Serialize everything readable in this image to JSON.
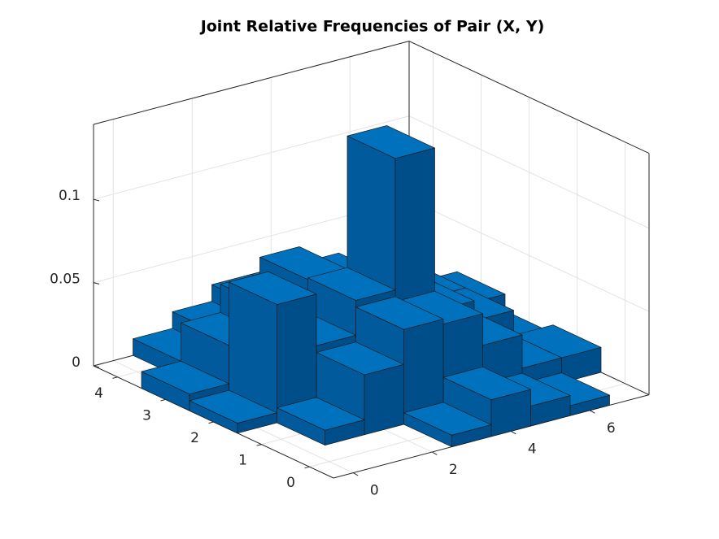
{
  "chart_data": {
    "type": "bar3",
    "title": "Joint Relative Frequencies of Pair (X, Y)",
    "x": [
      0,
      1,
      2,
      3,
      4,
      5,
      6,
      7
    ],
    "y": [
      0,
      1,
      2,
      3,
      4
    ],
    "values": [
      [
        0,
        0,
        0,
        0.007,
        0.022,
        0.012,
        0.006,
        0
      ],
      [
        0,
        0.009,
        0.036,
        0.057,
        0.054,
        0.035,
        0.015,
        0.015
      ],
      [
        0.006,
        0.071,
        0.04,
        0.061,
        0.14,
        0.042,
        0.03,
        0.01
      ],
      [
        0.01,
        0.033,
        0.05,
        0.06,
        0.05,
        0.04,
        0.03,
        0.02
      ],
      [
        0,
        0.01,
        0.02,
        0.03,
        0.03,
        0.02,
        0.01,
        0.005
      ]
    ],
    "color": "#0072bd",
    "xlim": [
      -0.5,
      7.5
    ],
    "ylim": [
      -0.5,
      4.5
    ],
    "zlim": [
      0,
      0.145
    ],
    "xticks": [
      0,
      2,
      4,
      6
    ],
    "yticks": [
      0,
      1,
      2,
      3,
      4
    ],
    "zticks": [
      0,
      0.05,
      0.1
    ],
    "grid": true
  }
}
